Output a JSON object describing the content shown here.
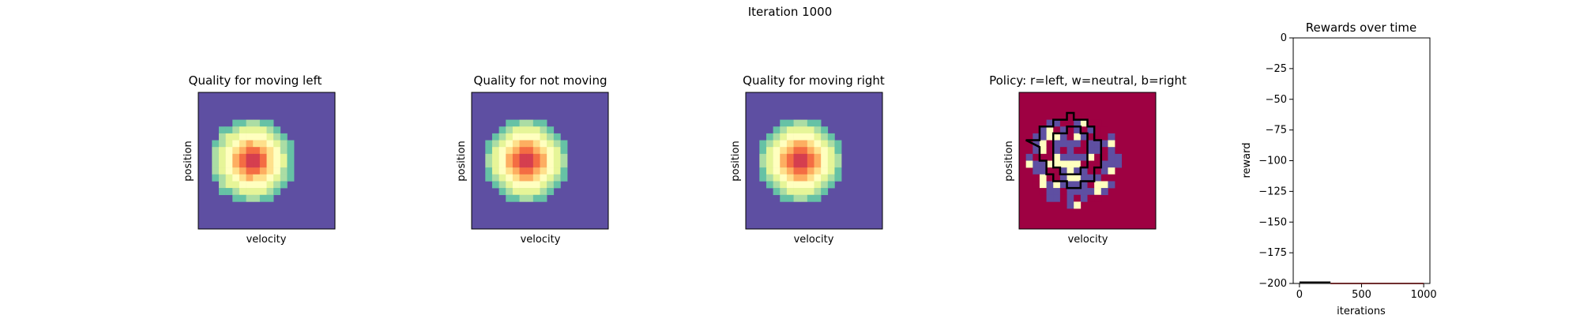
{
  "suptitle": "Iteration 1000",
  "colors": {
    "line_black": "#000000",
    "line_red": "#d62728",
    "frame": "#000000"
  },
  "heatmap_panels": [
    {
      "title": "Quality for moving left",
      "xlabel": "velocity",
      "ylabel": "position"
    },
    {
      "title": "Quality for not moving",
      "xlabel": "velocity",
      "ylabel": "position"
    },
    {
      "title": "Quality for moving right",
      "xlabel": "velocity",
      "ylabel": "position"
    }
  ],
  "policy_panel": {
    "title": "Policy: r=left, w=neutral, b=right",
    "xlabel": "velocity",
    "ylabel": "position"
  },
  "chart_data": [
    {
      "type": "heatmap",
      "title": "Quality for moving left",
      "xlabel": "velocity",
      "ylabel": "position",
      "colormap": "Spectral",
      "grid": [
        20,
        20
      ],
      "pattern": "circular blob centered near (6,9) of 20x20 grid; high values red at center, blue background"
    },
    {
      "type": "heatmap",
      "title": "Quality for not moving",
      "xlabel": "velocity",
      "ylabel": "position",
      "colormap": "Spectral",
      "grid": [
        20,
        20
      ],
      "pattern": "circular blob centered near (7,8)"
    },
    {
      "type": "heatmap",
      "title": "Quality for moving right",
      "xlabel": "velocity",
      "ylabel": "position",
      "colormap": "Spectral",
      "grid": [
        20,
        20
      ],
      "pattern": "circular blob centered near (7,8)"
    },
    {
      "type": "heatmap",
      "title": "Policy: r=left, w=neutral, b=right",
      "xlabel": "velocity",
      "ylabel": "position",
      "legend_colors": {
        "left": "#9e0142",
        "neutral": "#ffffbf",
        "right": "#5e4fa2"
      },
      "grid": [
        20,
        20
      ],
      "note": "mixed cells inside ring, trajectory contour overlaid in black"
    },
    {
      "type": "line",
      "title": "Rewards over time",
      "xlabel": "iterations",
      "ylabel": "reward",
      "xlim": [
        -50,
        1050
      ],
      "ylim": [
        -200,
        0
      ],
      "xticks": [
        0,
        500,
        1000
      ],
      "yticks": [
        0,
        -25,
        -50,
        -75,
        -100,
        -125,
        -150,
        -175,
        -200
      ],
      "series": [
        {
          "color": "#000000",
          "x": [
            0,
            250
          ],
          "y": [
            -199,
            -199
          ]
        },
        {
          "color": "#d62728",
          "x": [
            250,
            1000
          ],
          "y": [
            -200,
            -200
          ]
        }
      ]
    }
  ]
}
